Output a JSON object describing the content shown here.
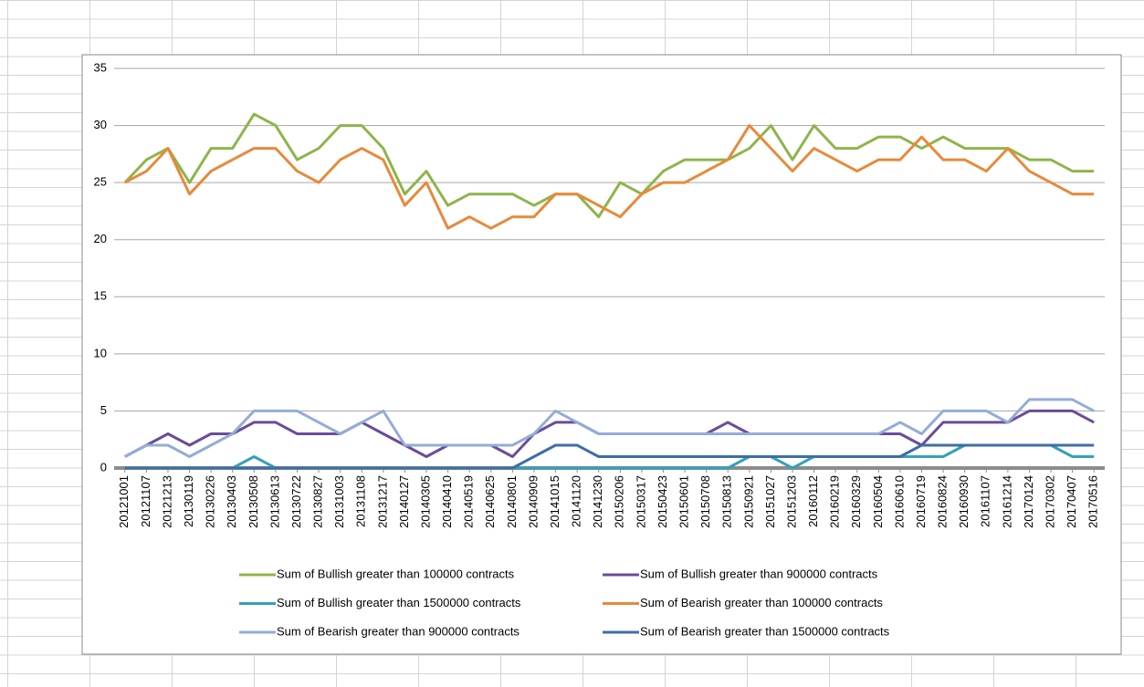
{
  "chart_data": {
    "type": "line",
    "categories": [
      "20121001",
      "20121107",
      "20121213",
      "20130119",
      "20130226",
      "20130403",
      "20130508",
      "20130613",
      "20130722",
      "20130827",
      "20131003",
      "20131108",
      "20131217",
      "20140127",
      "20140305",
      "20140410",
      "20140519",
      "20140625",
      "20140801",
      "20140909",
      "20141015",
      "20141120",
      "20141230",
      "20150206",
      "20150317",
      "20150423",
      "20150601",
      "20150708",
      "20150813",
      "20150921",
      "20151027",
      "20151203",
      "20160112",
      "20160219",
      "20160329",
      "20160504",
      "20160610",
      "20160719",
      "20160824",
      "20160930",
      "20161107",
      "20161214",
      "20170124",
      "20170302",
      "20170407",
      "20170516"
    ],
    "series": [
      {
        "name": "Sum of Bullish greater than 100000 contracts",
        "color": "#8db54a",
        "values": [
          25,
          27,
          28,
          25,
          28,
          28,
          31,
          30,
          27,
          28,
          30,
          30,
          28,
          24,
          26,
          23,
          24,
          24,
          24,
          23,
          24,
          24,
          22,
          25,
          24,
          26,
          27,
          27,
          27,
          28,
          30,
          27,
          30,
          28,
          28,
          29,
          29,
          28,
          29,
          28,
          28,
          28,
          27,
          27,
          26,
          26
        ]
      },
      {
        "name": "Sum of Bullish greater than 900000 contracts",
        "color": "#6b4c9a",
        "values": [
          1,
          2,
          3,
          2,
          3,
          3,
          4,
          4,
          3,
          3,
          3,
          4,
          3,
          2,
          1,
          2,
          2,
          2,
          1,
          3,
          4,
          4,
          3,
          3,
          3,
          3,
          3,
          3,
          4,
          3,
          3,
          3,
          3,
          3,
          3,
          3,
          3,
          2,
          4,
          4,
          4,
          4,
          5,
          5,
          5,
          4
        ]
      },
      {
        "name": "Sum of Bullish greater than 1500000 contracts",
        "color": "#34a0b8",
        "values": [
          0,
          0,
          0,
          0,
          0,
          0,
          1,
          0,
          0,
          0,
          0,
          0,
          0,
          0,
          0,
          0,
          0,
          0,
          0,
          0,
          0,
          0,
          0,
          0,
          0,
          0,
          0,
          0,
          0,
          1,
          1,
          0,
          1,
          1,
          1,
          1,
          1,
          1,
          1,
          2,
          2,
          2,
          2,
          2,
          1,
          1
        ]
      },
      {
        "name": "Sum of Bearish greater than 100000 contracts",
        "color": "#e8893a",
        "values": [
          25,
          26,
          28,
          24,
          26,
          27,
          28,
          28,
          26,
          25,
          27,
          28,
          27,
          23,
          25,
          21,
          22,
          21,
          22,
          22,
          24,
          24,
          23,
          22,
          24,
          25,
          25,
          26,
          27,
          30,
          28,
          26,
          28,
          27,
          26,
          27,
          27,
          29,
          27,
          27,
          26,
          28,
          26,
          25,
          24,
          24
        ]
      },
      {
        "name": "Sum of Bearish greater than 900000 contracts",
        "color": "#94acd8",
        "values": [
          1,
          2,
          2,
          1,
          2,
          3,
          5,
          5,
          5,
          4,
          3,
          4,
          5,
          2,
          2,
          2,
          2,
          2,
          2,
          3,
          5,
          4,
          3,
          3,
          3,
          3,
          3,
          3,
          3,
          3,
          3,
          3,
          3,
          3,
          3,
          3,
          4,
          3,
          5,
          5,
          5,
          4,
          6,
          6,
          6,
          5
        ]
      },
      {
        "name": "Sum of Bearish greater than 1500000 contracts",
        "color": "#3d6ea8",
        "values": [
          0,
          0,
          0,
          0,
          0,
          0,
          0,
          0,
          0,
          0,
          0,
          0,
          0,
          0,
          0,
          0,
          0,
          0,
          0,
          1,
          2,
          2,
          1,
          1,
          1,
          1,
          1,
          1,
          1,
          1,
          1,
          1,
          1,
          1,
          1,
          1,
          1,
          2,
          2,
          2,
          2,
          2,
          2,
          2,
          2,
          2
        ]
      }
    ],
    "ylim": [
      0,
      35
    ],
    "yticks": [
      0,
      5,
      10,
      15,
      20,
      25,
      30,
      35
    ],
    "grid": true,
    "legend": "bottom"
  }
}
